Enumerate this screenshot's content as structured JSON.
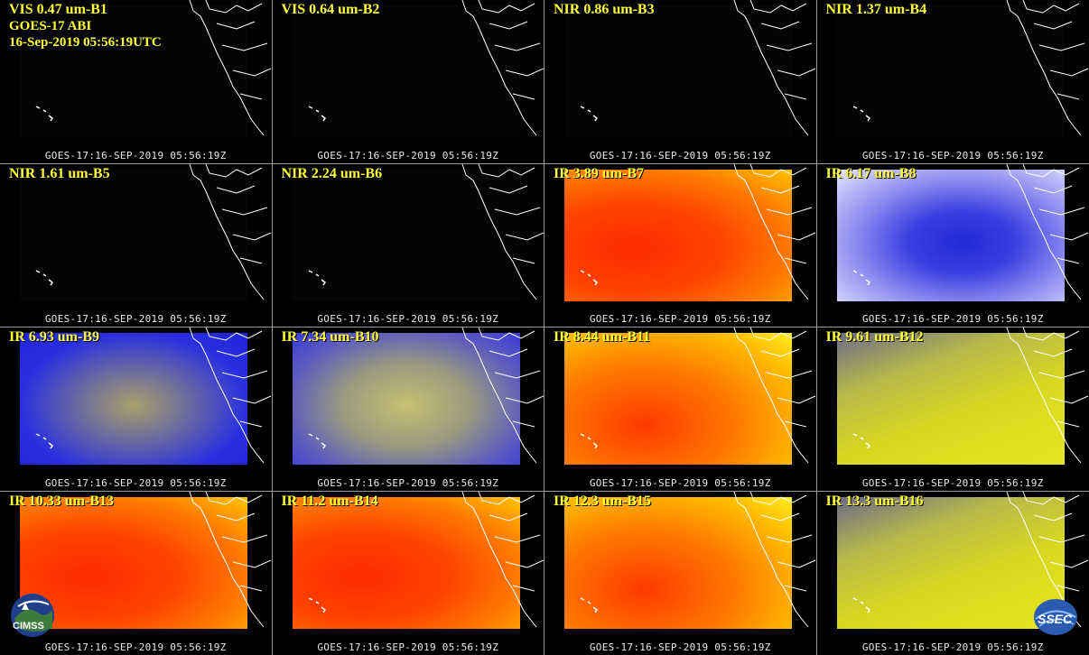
{
  "header": {
    "satellite_line": "GOES-17 ABI",
    "datetime_line": "16-Sep-2019 05:56:19UTC"
  },
  "timestamp": "GOES-17:16-SEP-2019 05:56:19Z",
  "panels": [
    {
      "label": "VIS 0.47 um-B1",
      "kind": "vis"
    },
    {
      "label": "VIS 0.64 um-B2",
      "kind": "vis"
    },
    {
      "label": "NIR 0.86 um-B3",
      "kind": "vis"
    },
    {
      "label": "NIR 1.37 um-B4",
      "kind": "vis"
    },
    {
      "label": "NIR 1.61 um-B5",
      "kind": "vis"
    },
    {
      "label": "NIR 2.24 um-B6",
      "kind": "vis"
    },
    {
      "label": "IR 3.89 um-B7",
      "kind": "ir-red"
    },
    {
      "label": "IR 6.17 um-B8",
      "kind": "wv-white"
    },
    {
      "label": "IR 6.93 um-B9",
      "kind": "wv-blue"
    },
    {
      "label": "IR 7.34 um-B10",
      "kind": "wv-mix"
    },
    {
      "label": "IR 8.44 um-B11",
      "kind": "ir-orange"
    },
    {
      "label": "IR 9.61 um-B12",
      "kind": "ir-yellow"
    },
    {
      "label": "IR 10.33 um-B13",
      "kind": "ir-red"
    },
    {
      "label": "IR 11.2 um-B14",
      "kind": "ir-red"
    },
    {
      "label": "IR 12.3 um-B15",
      "kind": "ir-orange"
    },
    {
      "label": "IR 13.3 um-B16",
      "kind": "ir-yellow"
    }
  ],
  "logos": {
    "left": "CIMSS",
    "right": "SSEC"
  },
  "colors": {
    "label": "#ffff33",
    "timestamp": "#e8e8e8",
    "coast": "#ffffff"
  }
}
